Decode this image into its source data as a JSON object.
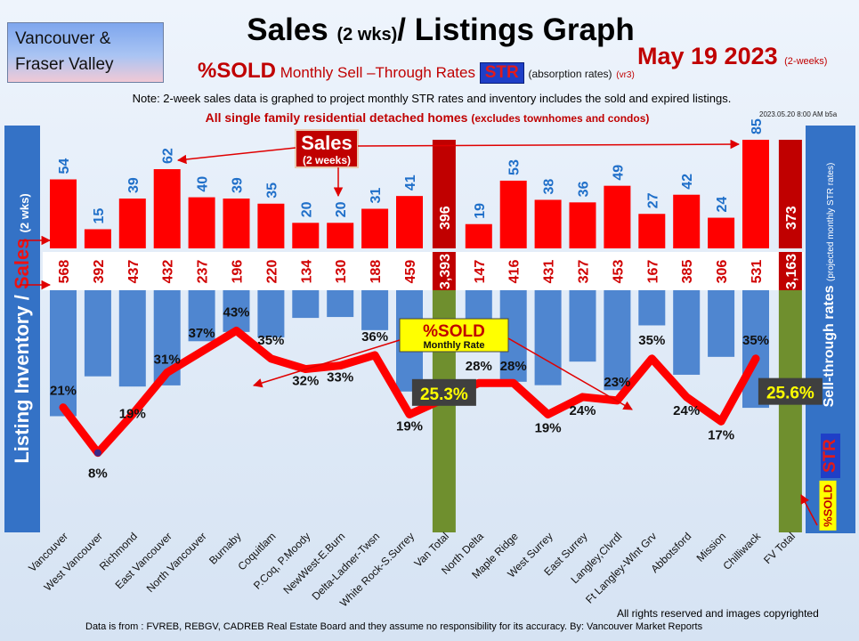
{
  "header": {
    "region_line1": "Vancouver &",
    "region_line2": "Fraser Valley",
    "title_main": "Sales",
    "title_period": "(2 wks)",
    "title_rest": "/ Listings Graph",
    "subtitle_sold": "%SOLD",
    "subtitle_rates": "Monthly Sell –Through Rates",
    "str_label": "STR",
    "absorption_note": "(absorption rates)",
    "version": "(vr3)",
    "date": "May 19  2023",
    "date_note": "(2-weeks)",
    "note": "Note: 2-week sales data is graphed to project monthly STR rates and inventory includes the sold and expired listings.",
    "subtitle2": "All single family residential detached homes",
    "subtitle2_note": "(excludes townhomes and condos)",
    "stamp": "2023.05.20 8:00 AM b5a"
  },
  "left_axis": {
    "inventory": "Listing Inventory /",
    "sales": "Sales",
    "period": "(2 wks)"
  },
  "right_axis": {
    "title": "Sell-through rates",
    "note": "(projected monthly STR rates)",
    "str": "STR",
    "sold": "%SOLD"
  },
  "callouts": {
    "sales": "Sales",
    "sales_period": "(2 weeks)",
    "sold": "%SOLD",
    "sold_rate": "Monthly Rate"
  },
  "footer": {
    "rights": "All rights reserved and  images copyrighted",
    "source": "Data is from : FVREB, REBGV, CADREB Real Estate Board and they assume no responsibility for its accuracy. By: Vancouver Market Reports"
  },
  "colors": {
    "sales": "#ff0000",
    "inventory": "#4f86d0",
    "total_sales": "#c00000",
    "total_inventory": "#6f8f2e",
    "sold_line": "#ff0000",
    "label_blue": "#1f6fc9"
  },
  "chart_data": {
    "type": "bar",
    "categories": [
      "Vancouver",
      "West Vancouver",
      "Richmond",
      "East Vancouver",
      "North Vancouver",
      "Burnaby",
      "Coquitlam",
      "P.Coq, P.Moody",
      "NewWest-E.Burn",
      "Delta-Ladner-Twsn",
      "White Rock-S.Surrey",
      "Van Total",
      "North Delta",
      "Maple Ridge",
      "West Surrey",
      "East Surrey",
      "Langley,Clvrdl",
      "Ft Langley-Wlnt Grv",
      "Abbotsford",
      "Mission",
      "Chilliwack",
      "FV Total"
    ],
    "series": [
      {
        "name": "Sales",
        "values": [
          54,
          15,
          39,
          62,
          40,
          39,
          35,
          20,
          20,
          31,
          41,
          396,
          19,
          53,
          38,
          36,
          49,
          27,
          42,
          24,
          85,
          373
        ]
      },
      {
        "name": "Listing Inventory",
        "values": [
          568,
          392,
          437,
          432,
          237,
          196,
          220,
          134,
          130,
          188,
          459,
          3393,
          147,
          416,
          431,
          327,
          453,
          167,
          385,
          306,
          531,
          3163
        ]
      },
      {
        "name": "%SOLD",
        "values": [
          21,
          8,
          19,
          31,
          37,
          43,
          35,
          32,
          33,
          36,
          19,
          25.3,
          28,
          28,
          19,
          24,
          23,
          35,
          24,
          17,
          35,
          25.6
        ]
      }
    ],
    "sales_labels": [
      "54",
      "15",
      "39",
      "62",
      "40",
      "39",
      "35",
      "20",
      "20",
      "31",
      "41",
      "396",
      "19",
      "53",
      "38",
      "36",
      "49",
      "27",
      "42",
      "24",
      "85",
      "373"
    ],
    "inventory_labels": [
      "568",
      "392",
      "437",
      "432",
      "237",
      "196",
      "220",
      "134",
      "130",
      "188",
      "459",
      "3,393",
      "147",
      "416",
      "431",
      "327",
      "453",
      "167",
      "385",
      "306",
      "531",
      "3,163"
    ],
    "sold_labels": [
      "21%",
      "8%",
      "19%",
      "31%",
      "37%",
      "43%",
      "35%",
      "32%",
      "33%",
      "36%",
      "19%",
      "25.3%",
      "28%",
      "28%",
      "19%",
      "24%",
      "23%",
      "35%",
      "24%",
      "17%",
      "35%",
      "25.6%"
    ],
    "total_indices": [
      11,
      21
    ],
    "legend": "none",
    "grid": false
  }
}
